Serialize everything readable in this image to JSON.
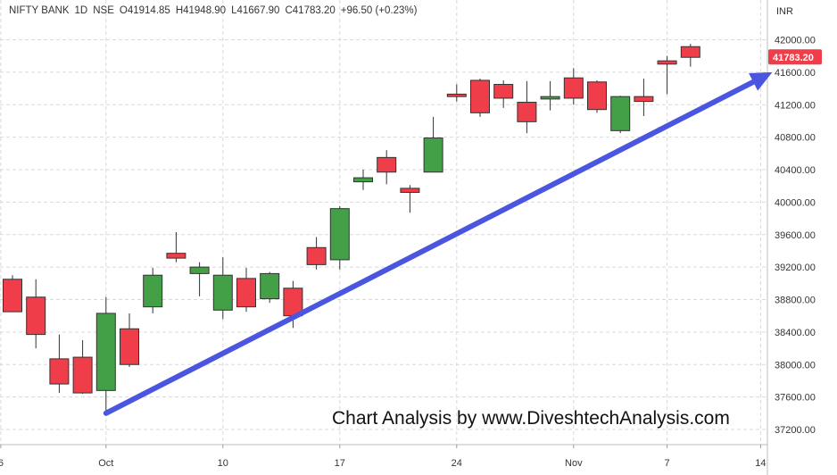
{
  "header": {
    "symbol": "NIFTY BANK",
    "timeframe": "1D",
    "exchange": "NSE",
    "open": "O41914.85",
    "high": "H41948.90",
    "low": "L41667.90",
    "close": "C41783.20",
    "change": "+96.50 (+0.23%)"
  },
  "currency": "INR",
  "last_price_label": "41783.20",
  "watermark": "Chart Analysis by www.DiveshtechAnalysis.com",
  "colors": {
    "up": "#43a047",
    "down": "#ef3e4a",
    "arrow": "#4a56e0",
    "grid": "#d9d9d9",
    "axis_text": "#333333"
  },
  "chart_data": {
    "type": "candlestick",
    "ylim": [
      37000,
      42200
    ],
    "y_ticks": [
      37200,
      37600,
      38000,
      38400,
      38800,
      39200,
      39600,
      40000,
      40400,
      40800,
      41200,
      41600,
      42000
    ],
    "y_tick_labels": [
      "37200.00",
      "37600.00",
      "38000.00",
      "38400.00",
      "38800.00",
      "39200.00",
      "39600.00",
      "40000.00",
      "40400.00",
      "40800.00",
      "41200.00",
      "41600.00",
      "42000.00"
    ],
    "x_ticks": [
      {
        "label": "6",
        "index": -0.5
      },
      {
        "label": "Oct",
        "index": 4
      },
      {
        "label": "10",
        "index": 9
      },
      {
        "label": "17",
        "index": 14
      },
      {
        "label": "24",
        "index": 19
      },
      {
        "label": "Nov",
        "index": 24
      },
      {
        "label": "7",
        "index": 28
      },
      {
        "label": "14",
        "index": 32
      }
    ],
    "candles": [
      {
        "o": 39050,
        "h": 39100,
        "l": 38650,
        "c": 38650
      },
      {
        "o": 38830,
        "h": 39050,
        "l": 38200,
        "c": 38370
      },
      {
        "o": 38070,
        "h": 38370,
        "l": 37650,
        "c": 37760
      },
      {
        "o": 38090,
        "h": 38300,
        "l": 37640,
        "c": 37650
      },
      {
        "o": 37680,
        "h": 38830,
        "l": 37420,
        "c": 38630
      },
      {
        "o": 38440,
        "h": 38630,
        "l": 37970,
        "c": 38000
      },
      {
        "o": 38710,
        "h": 39190,
        "l": 38630,
        "c": 39100
      },
      {
        "o": 39370,
        "h": 39630,
        "l": 39260,
        "c": 39310
      },
      {
        "o": 39120,
        "h": 39260,
        "l": 38840,
        "c": 39200
      },
      {
        "o": 38670,
        "h": 39320,
        "l": 38560,
        "c": 39100
      },
      {
        "o": 39060,
        "h": 39190,
        "l": 38650,
        "c": 38710
      },
      {
        "o": 38810,
        "h": 39140,
        "l": 38760,
        "c": 39120
      },
      {
        "o": 38940,
        "h": 39030,
        "l": 38450,
        "c": 38600
      },
      {
        "o": 39440,
        "h": 39570,
        "l": 39170,
        "c": 39230
      },
      {
        "o": 39290,
        "h": 39950,
        "l": 39170,
        "c": 39920
      },
      {
        "o": 40250,
        "h": 40400,
        "l": 40150,
        "c": 40300
      },
      {
        "o": 40550,
        "h": 40640,
        "l": 40220,
        "c": 40370
      },
      {
        "o": 40170,
        "h": 40210,
        "l": 39870,
        "c": 40120
      },
      {
        "o": 40370,
        "h": 41050,
        "l": 40370,
        "c": 40790
      },
      {
        "o": 41330,
        "h": 41450,
        "l": 41240,
        "c": 41300
      },
      {
        "o": 41500,
        "h": 41520,
        "l": 41050,
        "c": 41100
      },
      {
        "o": 41450,
        "h": 41500,
        "l": 41160,
        "c": 41280
      },
      {
        "o": 41230,
        "h": 41490,
        "l": 40850,
        "c": 40990
      },
      {
        "o": 41270,
        "h": 41490,
        "l": 41130,
        "c": 41300
      },
      {
        "o": 41530,
        "h": 41650,
        "l": 41200,
        "c": 41280
      },
      {
        "o": 41480,
        "h": 41500,
        "l": 41100,
        "c": 41140
      },
      {
        "o": 40880,
        "h": 41310,
        "l": 40850,
        "c": 41300
      },
      {
        "o": 41300,
        "h": 41520,
        "l": 41060,
        "c": 41240
      },
      {
        "o": 41740,
        "h": 41800,
        "l": 41330,
        "c": 41700
      },
      {
        "o": 41914.85,
        "h": 41948.9,
        "l": 41667.9,
        "c": 41783.2
      }
    ],
    "trend_arrow": {
      "from": [
        4,
        37400
      ],
      "to": [
        32.5,
        41600
      ]
    }
  }
}
